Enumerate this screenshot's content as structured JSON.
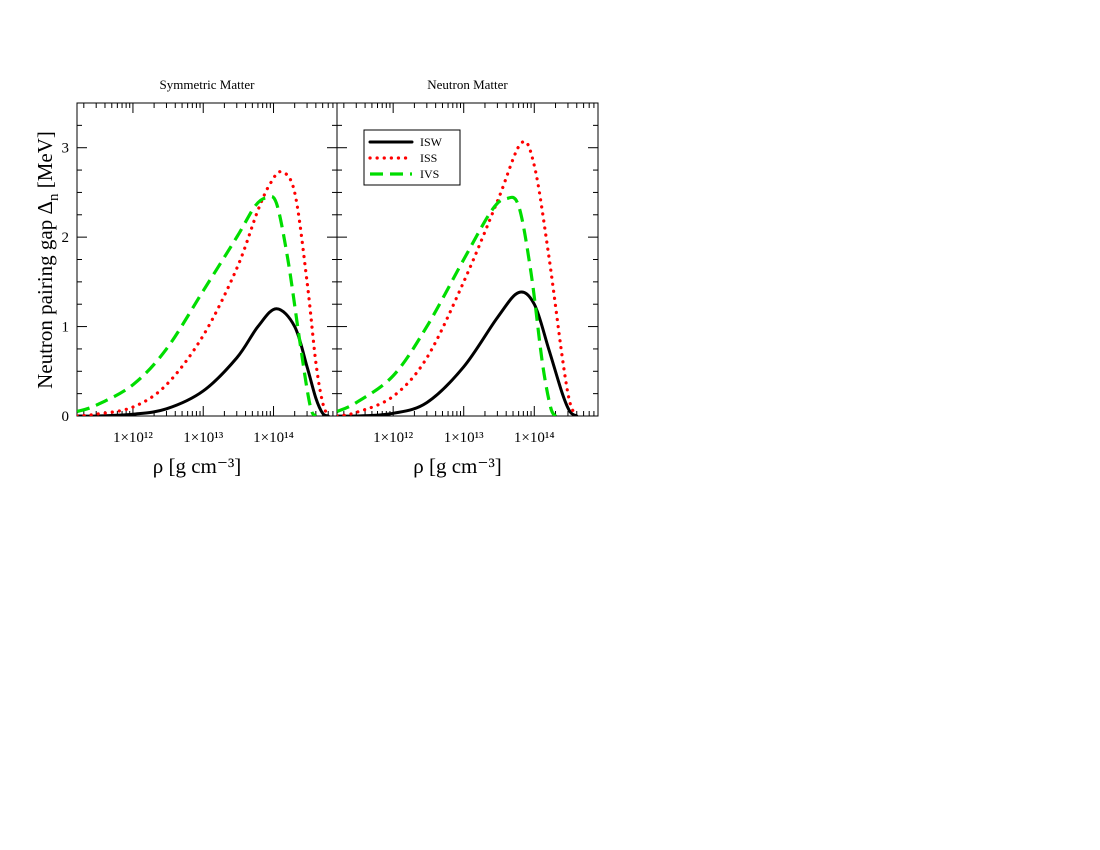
{
  "chart_data": [
    {
      "type": "line",
      "title": "Symmetric Matter",
      "xlabel": "ρ   [g cm⁻³]",
      "ylabel": "Neutron pairing gap Δn   [MeV]",
      "xscale": "log",
      "xlim": [
        160000000000.0,
        800000000000000.0
      ],
      "ylim": [
        0,
        3.5
      ],
      "xticks": [
        {
          "value": 1000000000000.0,
          "label": "1×10¹²"
        },
        {
          "value": 10000000000000.0,
          "label": "1×10¹³"
        },
        {
          "value": 100000000000000.0,
          "label": "1×10¹⁴"
        }
      ],
      "yticks": [
        {
          "value": 0,
          "label": "0"
        },
        {
          "value": 1,
          "label": "1"
        },
        {
          "value": 2,
          "label": "2"
        },
        {
          "value": 3,
          "label": "3"
        }
      ],
      "grid": false,
      "legend": "none",
      "series": [
        {
          "name": "ISW",
          "color": "#000000",
          "style": "solid",
          "x": [
            160000000000.0,
            300000000000.0,
            1000000000000.0,
            3000000000000.0,
            10000000000000.0,
            30000000000000.0,
            60000000000000.0,
            110000000000000.0,
            200000000000000.0,
            300000000000000.0,
            400000000000000.0,
            500000000000000.0,
            600000000000000.0
          ],
          "y": [
            0.0,
            0.0,
            0.02,
            0.08,
            0.28,
            0.65,
            1.0,
            1.2,
            1.0,
            0.55,
            0.2,
            0.03,
            0.0
          ]
        },
        {
          "name": "ISS",
          "color": "#ff0000",
          "style": "dotted",
          "x": [
            160000000000.0,
            300000000000.0,
            1000000000000.0,
            3000000000000.0,
            10000000000000.0,
            30000000000000.0,
            60000000000000.0,
            90000000000000.0,
            130000000000000.0,
            200000000000000.0,
            300000000000000.0,
            400000000000000.0,
            500000000000000.0,
            600000000000000.0
          ],
          "y": [
            0.0,
            0.02,
            0.1,
            0.35,
            0.9,
            1.65,
            2.3,
            2.6,
            2.73,
            2.5,
            1.5,
            0.6,
            0.15,
            0.0
          ]
        },
        {
          "name": "IVS",
          "color": "#00dd00",
          "style": "dashed",
          "x": [
            160000000000.0,
            300000000000.0,
            1000000000000.0,
            3000000000000.0,
            10000000000000.0,
            30000000000000.0,
            55000000000000.0,
            80000000000000.0,
            110000000000000.0,
            160000000000000.0,
            230000000000000.0,
            300000000000000.0,
            350000000000000.0,
            400000000000000.0
          ],
          "y": [
            0.05,
            0.12,
            0.35,
            0.75,
            1.4,
            2.0,
            2.35,
            2.44,
            2.38,
            1.75,
            0.9,
            0.3,
            0.05,
            0.0
          ]
        }
      ]
    },
    {
      "type": "line",
      "title": "Neutron Matter",
      "xlabel": "ρ   [g cm⁻³]",
      "ylabel": "",
      "xscale": "log",
      "xlim": [
        160000000000.0,
        800000000000000.0
      ],
      "ylim": [
        0,
        3.5
      ],
      "xticks": [
        {
          "value": 1000000000000.0,
          "label": "1×10¹²"
        },
        {
          "value": 10000000000000.0,
          "label": "1×10¹³"
        },
        {
          "value": 100000000000000.0,
          "label": "1×10¹⁴"
        }
      ],
      "yticks": [],
      "grid": false,
      "legend": "top-left",
      "series": [
        {
          "name": "ISW",
          "color": "#000000",
          "style": "solid",
          "x": [
            160000000000.0,
            300000000000.0,
            1000000000000.0,
            3000000000000.0,
            10000000000000.0,
            30000000000000.0,
            60000000000000.0,
            100000000000000.0,
            160000000000000.0,
            250000000000000.0,
            320000000000000.0,
            400000000000000.0
          ],
          "y": [
            0.0,
            0.0,
            0.03,
            0.15,
            0.55,
            1.1,
            1.38,
            1.25,
            0.75,
            0.25,
            0.05,
            0.0
          ]
        },
        {
          "name": "ISS",
          "color": "#ff0000",
          "style": "dotted",
          "x": [
            160000000000.0,
            300000000000.0,
            1000000000000.0,
            3000000000000.0,
            10000000000000.0,
            30000000000000.0,
            65000000000000.0,
            100000000000000.0,
            160000000000000.0,
            250000000000000.0,
            320000000000000.0,
            400000000000000.0
          ],
          "y": [
            0.0,
            0.04,
            0.22,
            0.65,
            1.5,
            2.4,
            3.05,
            2.8,
            1.8,
            0.65,
            0.15,
            0.0
          ]
        },
        {
          "name": "IVS",
          "color": "#00dd00",
          "style": "dashed",
          "x": [
            160000000000.0,
            300000000000.0,
            1000000000000.0,
            3000000000000.0,
            10000000000000.0,
            25000000000000.0,
            40000000000000.0,
            60000000000000.0,
            90000000000000.0,
            130000000000000.0,
            170000000000000.0,
            200000000000000.0
          ],
          "y": [
            0.05,
            0.15,
            0.45,
            1.0,
            1.75,
            2.3,
            2.43,
            2.35,
            1.6,
            0.6,
            0.1,
            0.0
          ]
        }
      ]
    }
  ]
}
